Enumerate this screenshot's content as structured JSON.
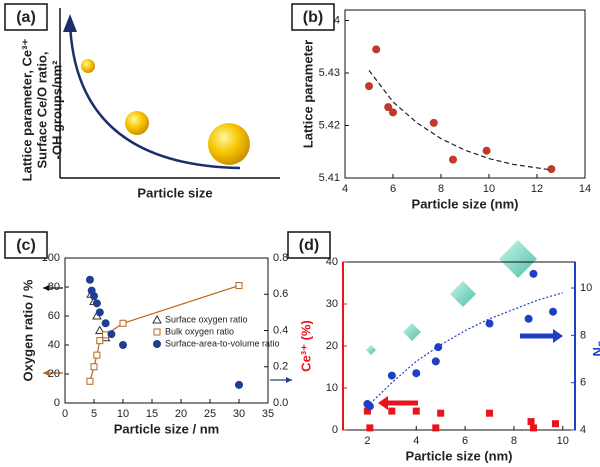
{
  "chart_data": [
    {
      "type": "schematic",
      "panel": "(a)",
      "ylabel": [
        "Lattice parameter, Ce³⁺",
        "Surface Ce/O ratio,",
        "-OH groups/nm²"
      ],
      "xlabel": "Particle size"
    },
    {
      "type": "scatter",
      "panel": "(b)",
      "ylabel": "Lattice parameter",
      "xlabel": "Particle size (nm)",
      "xlim": [
        4,
        14
      ],
      "xticks": [
        4,
        6,
        8,
        10,
        12,
        14
      ],
      "ylim": [
        5.41,
        5.442
      ],
      "yticks": [
        5.41,
        5.42,
        5.43,
        5.44
      ],
      "series": [
        {
          "color": "#c0392b",
          "marker": "circle",
          "filled": true,
          "x": [
            5.0,
            5.3,
            5.8,
            6.0,
            7.7,
            8.5,
            9.9,
            12.6
          ],
          "values": [
            5.4275,
            5.4345,
            5.4235,
            5.4225,
            5.4205,
            5.4135,
            5.4152,
            5.4117
          ]
        },
        {
          "color": "#222222",
          "marker": "none",
          "line": "dashed",
          "x": [
            5.0,
            6.0,
            7.0,
            8.0,
            9.0,
            10.0,
            11.0,
            12.5
          ],
          "values": [
            5.4305,
            5.4245,
            5.4205,
            5.4175,
            5.4153,
            5.4137,
            5.4126,
            5.4116
          ]
        }
      ]
    },
    {
      "type": "scatter",
      "panel": "(c)",
      "ylabel": "Oxygen ratio / %",
      "xlabel": "Particle size / nm",
      "xlim": [
        0,
        35
      ],
      "xticks": [
        0,
        5,
        10,
        15,
        20,
        25,
        30,
        35
      ],
      "ylim": [
        0,
        100
      ],
      "yticks": [
        0,
        20,
        40,
        60,
        80,
        100
      ],
      "y2lim": [
        0,
        0.8
      ],
      "y2ticks": [
        {
          "value": 0,
          "label": "0.0"
        },
        0.2,
        0.4,
        0.6,
        0.8
      ],
      "legend": "right",
      "series": [
        {
          "name": "Surface oxygen ratio",
          "color": "#333333",
          "marker": "triangle",
          "filled": false,
          "x": [
            4.5,
            5.0,
            5.5,
            6.0,
            7.0
          ],
          "values": [
            75,
            70,
            60,
            50,
            45
          ]
        },
        {
          "name": "Bulk oxygen ratio",
          "color": "#b5651d",
          "marker": "square",
          "filled": false,
          "line": "solid",
          "x": [
            4.3,
            5.0,
            5.5,
            6.0,
            7.0,
            10.0,
            30.0
          ],
          "values": [
            15,
            25,
            33,
            43,
            47,
            55,
            81
          ]
        },
        {
          "name": "Surface-area-to-volume ratio",
          "color": "#1f3f8f",
          "marker": "circle",
          "filled": true,
          "axis": "y2",
          "x": [
            4.3,
            4.6,
            5.0,
            5.5,
            6.0,
            7.0,
            8.0,
            10.0,
            30.0
          ],
          "values": [
            0.68,
            0.62,
            0.59,
            0.55,
            0.5,
            0.44,
            0.38,
            0.32,
            0.1
          ]
        }
      ]
    },
    {
      "type": "scatter",
      "panel": "(d)",
      "ylabel": "Ce³⁺ (%)",
      "y2label": "N",
      "y2label_sub": "Ce",
      "xlabel": "Particle size (nm)",
      "ycolor": "#e8141b",
      "y2color": "#1f3fc4",
      "xlim": [
        1,
        10.5
      ],
      "xticks": [
        2,
        4,
        6,
        8,
        10
      ],
      "ylim": [
        0,
        40
      ],
      "yticks": [
        0,
        10,
        20,
        30,
        40
      ],
      "y2lim": [
        4,
        11.1
      ],
      "y2ticks": [
        4,
        6,
        8,
        10
      ],
      "series": [
        {
          "color": "#e8141b",
          "marker": "square",
          "filled": true,
          "x": [
            2.0,
            2.1,
            3.0,
            4.0,
            4.8,
            5.0,
            7.0,
            8.7,
            8.8,
            9.7
          ],
          "values": [
            4.5,
            0.5,
            4.5,
            4.5,
            0.5,
            4,
            4,
            2,
            0.5,
            1.5
          ]
        },
        {
          "color": "#1f3fc4",
          "marker": "circle",
          "filled": true,
          "axis": "y2",
          "x": [
            2.0,
            2.1,
            3.0,
            4.0,
            4.8,
            4.9,
            7.0,
            8.6,
            8.8,
            9.6
          ],
          "values": [
            5.1,
            5.0,
            6.3,
            6.4,
            6.9,
            7.5,
            8.5,
            8.7,
            10.6,
            9.0
          ]
        },
        {
          "color": "#1f3fc4",
          "marker": "none",
          "line": "dotted",
          "axis": "y2",
          "x": [
            2.0,
            3.0,
            4.0,
            5.0,
            6.0,
            7.0,
            8.0,
            9.0,
            10.0
          ],
          "values": [
            5.0,
            6.0,
            6.9,
            7.6,
            8.2,
            8.7,
            9.1,
            9.5,
            9.8
          ]
        }
      ]
    }
  ]
}
